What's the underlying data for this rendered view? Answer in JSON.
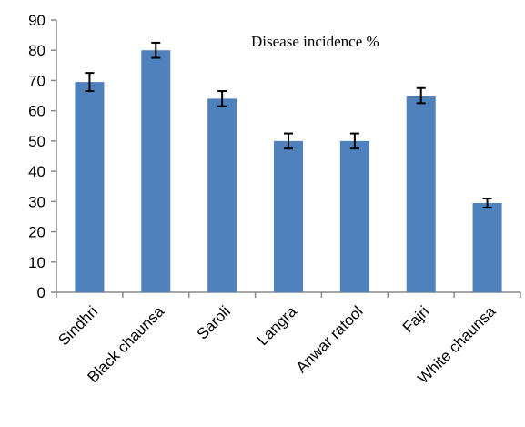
{
  "chart_data": {
    "type": "bar",
    "title": "Disease incidence %",
    "xlabel": "",
    "ylabel": "",
    "categories": [
      "Sindhri",
      "Black chaunsa",
      "Saroli",
      "Langra",
      "Anwar ratool",
      "Fajri",
      "White chaunsa"
    ],
    "values": [
      69.5,
      80,
      64,
      50,
      50,
      65,
      29.5
    ],
    "error": [
      3,
      2.5,
      2.5,
      2.5,
      2.5,
      2.5,
      1.5
    ],
    "ylim": [
      0,
      90
    ],
    "yticks": [
      "0",
      "10",
      "20",
      "30",
      "40",
      "50",
      "60",
      "70",
      "80",
      "90"
    ],
    "grid": false,
    "legend": "none",
    "bar_color": "#4f81bd"
  }
}
